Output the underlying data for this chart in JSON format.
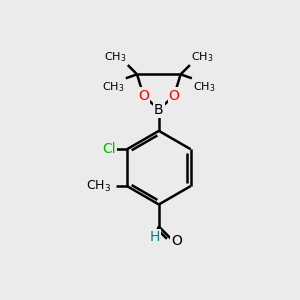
{
  "background_color": "#ebebeb",
  "bond_color": "#000000",
  "bond_width": 1.8,
  "atom_colors": {
    "C": "#000000",
    "H": "#008080",
    "O": "#ff0000",
    "B": "#000000",
    "Cl": "#00bb00"
  },
  "font_size": 10,
  "fig_size": [
    3.0,
    3.0
  ],
  "dpi": 100
}
